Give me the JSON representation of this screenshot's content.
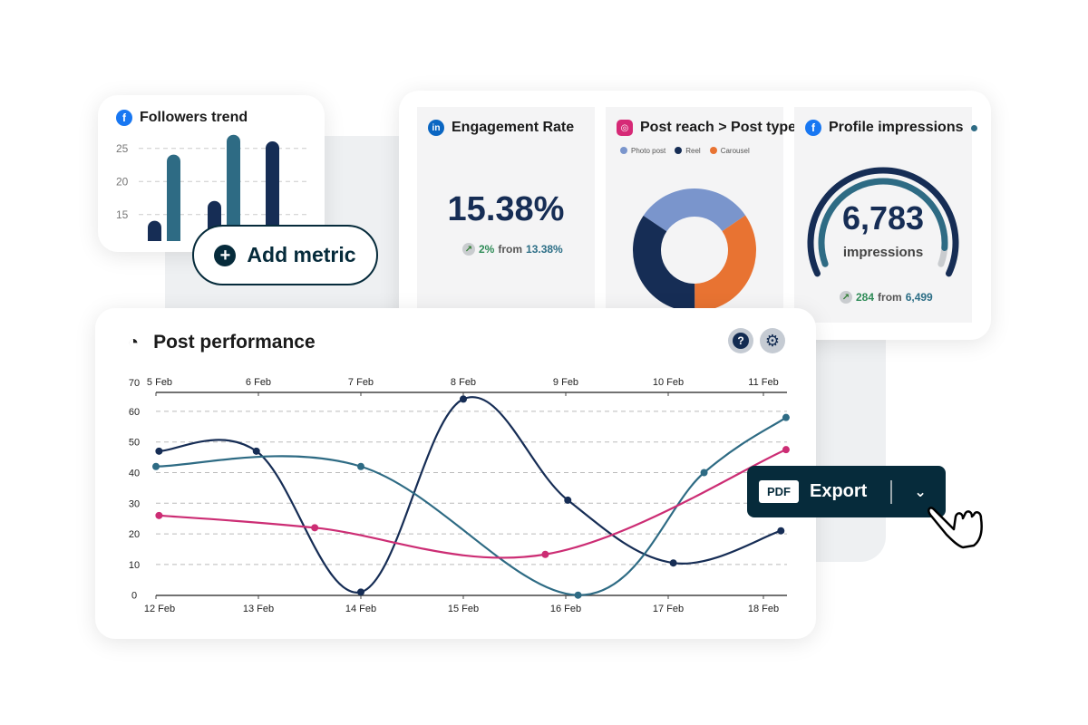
{
  "colors": {
    "navy": "#162d55",
    "teal": "#2e6b84",
    "pink": "#cc2d74",
    "lightblue": "#7a95cc",
    "orange": "#e87332",
    "dark": "#062b3b",
    "facebook": "#1877f2",
    "linkedin": "#0a66c2",
    "instagram": "#d62976"
  },
  "followers": {
    "title": "Followers trend",
    "icon": "facebook-icon",
    "y_ticks": [
      "25",
      "20",
      "15"
    ],
    "chart_data": {
      "type": "bar",
      "ylim": [
        11,
        27.5
      ],
      "y_ticks": [
        15,
        20,
        25
      ],
      "bars": [
        {
          "series": "navy",
          "value": 14
        },
        {
          "series": "teal",
          "value": 24
        },
        {
          "series": "navy",
          "value": 17
        },
        {
          "series": "teal",
          "value": 27
        },
        {
          "series": "navy",
          "value": 26
        }
      ]
    }
  },
  "add_metric": {
    "label": "Add metric",
    "icon": "plus-circle-icon"
  },
  "engagement": {
    "title": "Engagement Rate",
    "icon": "linkedin-icon",
    "value": "15.38%",
    "delta": "2%",
    "from_label": "from",
    "previous": "13.38%"
  },
  "post_reach": {
    "title": "Post reach > Post type",
    "icon": "instagram-icon",
    "chart_data": {
      "type": "pie",
      "donut": true,
      "legend_position": "top",
      "slices": [
        {
          "name": "Photo post",
          "value": 31,
          "color": "#7a95cc"
        },
        {
          "name": "Carousel",
          "value": 34.5,
          "color": "#e87332"
        },
        {
          "name": "Reel",
          "value": 34.5,
          "color": "#162d55"
        }
      ]
    },
    "legend": [
      "Photo post",
      "Reel",
      "Carousel"
    ]
  },
  "impressions": {
    "title": "Profile impressions",
    "icon": "facebook-icon",
    "value": "6,783",
    "unit": "impressions",
    "delta": "284",
    "from_label": "from",
    "previous": "6,499",
    "gauge_fraction": 0.93
  },
  "post_performance": {
    "title": "Post performance",
    "icon": "gauge-icon",
    "help_icon": "question-icon",
    "settings_icon": "gear-icon",
    "chart_data": {
      "type": "line",
      "ylim": [
        0,
        70
      ],
      "grid": true,
      "y_ticks": [
        "0",
        "10",
        "20",
        "30",
        "40",
        "50",
        "60",
        "70"
      ],
      "x_bottom_ticks": [
        "12 Feb",
        "13 Feb",
        "14 Feb",
        "15 Feb",
        "16 Feb",
        "17 Feb",
        "18 Feb"
      ],
      "x_top_ticks": [
        "5 Feb",
        "6 Feb",
        "7 Feb",
        "8 Feb",
        "9 Feb",
        "10 Feb",
        "11 Feb"
      ],
      "series": [
        {
          "color": "#162d55",
          "points": [
            [
              12.03,
              47
            ],
            [
              12.98,
              47
            ],
            [
              14,
              1
            ],
            [
              15,
              64
            ],
            [
              16.02,
              31
            ],
            [
              17.05,
              10.5
            ],
            [
              18.1,
              21
            ]
          ]
        },
        {
          "color": "#2e6b84",
          "points": [
            [
              12,
              42
            ],
            [
              14,
              42
            ],
            [
              16.12,
              0
            ],
            [
              17.35,
              40
            ],
            [
              18.15,
              58
            ]
          ]
        },
        {
          "color": "#cc2d74",
          "points": [
            [
              12.03,
              26
            ],
            [
              13.55,
              22
            ],
            [
              15.8,
              13.3
            ],
            [
              18.15,
              47.5
            ]
          ]
        }
      ]
    }
  },
  "export": {
    "badge": "PDF",
    "label": "Export",
    "dropdown_icon": "chevron-down-icon",
    "cursor_icon": "hand-pointer-icon"
  }
}
